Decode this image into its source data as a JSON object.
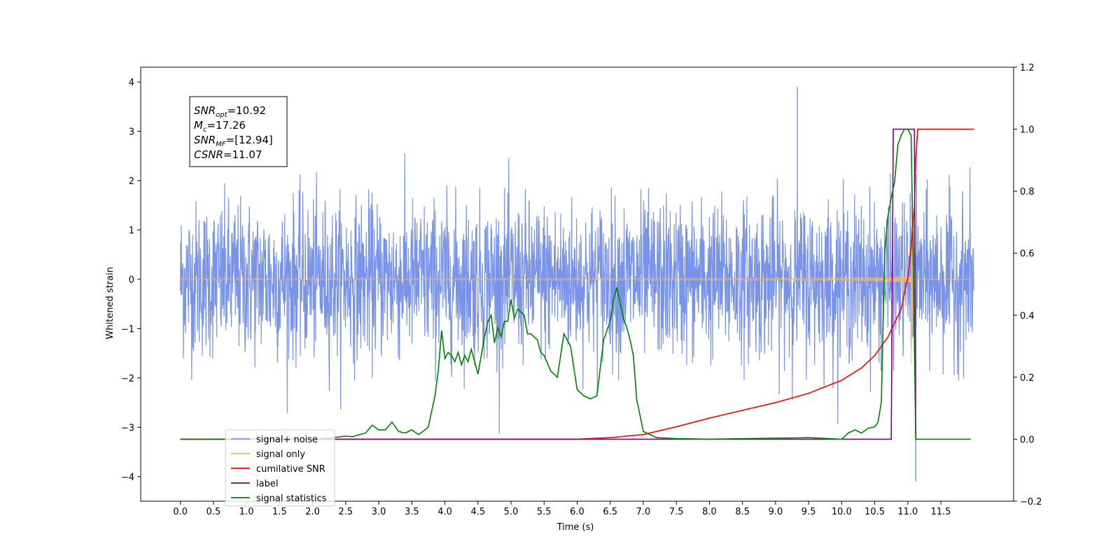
{
  "chart_data": {
    "type": "line",
    "xlabel": "Time (s)",
    "ylabel": "Whitened strain",
    "xlim": [
      -0.6,
      12.6
    ],
    "ylim_left": [
      -4.5,
      4.3
    ],
    "ylim_right": [
      -0.2,
      1.2
    ],
    "x_ticks": [
      0.0,
      0.5,
      1.0,
      1.5,
      2.0,
      2.5,
      3.0,
      3.5,
      4.0,
      4.5,
      5.0,
      5.5,
      6.0,
      6.5,
      7.0,
      7.5,
      8.0,
      8.5,
      9.0,
      9.5,
      10.0,
      10.5,
      11.0,
      11.5
    ],
    "x_tick_labels": [
      "0.0",
      "0.5",
      "1.0",
      "1.5",
      "2.0",
      "2.5",
      "3.0",
      "3.5",
      "4.0",
      "4.5",
      "5.0",
      "5.5",
      "6.0",
      "6.5",
      "7.0",
      "7.5",
      "8.0",
      "8.5",
      "9.0",
      "9.5",
      "10.0",
      "10.5",
      "11.0",
      "11.5"
    ],
    "y_left_ticks": [
      4,
      3,
      2,
      1,
      0,
      -1,
      -2,
      -3,
      -4
    ],
    "y_left_tick_labels": [
      "4",
      "3",
      "2",
      "1",
      "0",
      "−1",
      "−2",
      "−3",
      "−4"
    ],
    "y_right_ticks": [
      1.2,
      1.0,
      0.8,
      0.6,
      0.4,
      0.2,
      0.0,
      -0.2
    ],
    "y_right_tick_labels": [
      "1.2",
      "1.0",
      "0.8",
      "0.6",
      "0.4",
      "0.2",
      "0.0",
      "−0.2"
    ],
    "grid": false,
    "legend_position": "lower-left",
    "annotation": {
      "lines": [
        {
          "main": "SNR",
          "sub": "opt",
          "rest": "=10.92"
        },
        {
          "main": "M",
          "sub": "c",
          "rest": "=17.26"
        },
        {
          "main": "SNR",
          "sub": "MF",
          "rest": "=[12.94]"
        },
        {
          "main": "CSNR",
          "sub": "",
          "rest": "=11.07"
        }
      ]
    },
    "series": [
      {
        "name": "signal+ noise",
        "axis": "left",
        "color": "#7893E8",
        "noise_envelope": {
          "x_start": 0.0,
          "x_end": 12.0,
          "typical_range": [
            -1.5,
            1.5
          ],
          "max": 3.9,
          "min": -4.1
        }
      },
      {
        "name": "signal only",
        "axis": "left",
        "color": "#F5B86E",
        "chirp": {
          "x_start": 0.0,
          "x_end": 11.1,
          "peak_time": 11.05,
          "peak_amplitude": 1.75
        }
      },
      {
        "name": "cumilative SNR",
        "axis": "right",
        "color": "#FF0000",
        "x": [
          0.0,
          6.0,
          6.5,
          7.0,
          7.5,
          8.0,
          8.5,
          9.0,
          9.5,
          10.0,
          10.3,
          10.5,
          10.7,
          10.9,
          11.0,
          11.05,
          11.1,
          11.12,
          11.15,
          12.0
        ],
        "values": [
          0.0,
          0.0,
          0.005,
          0.015,
          0.04,
          0.068,
          0.093,
          0.118,
          0.148,
          0.19,
          0.23,
          0.27,
          0.33,
          0.42,
          0.52,
          0.62,
          0.75,
          0.9,
          1.0,
          1.0
        ]
      },
      {
        "name": "label",
        "axis": "right",
        "color": "#800080",
        "x": [
          0.0,
          10.75,
          10.78,
          11.1,
          11.12,
          11.15
        ],
        "values": [
          0.0,
          0.0,
          1.0,
          1.0,
          0.0,
          0.0
        ]
      },
      {
        "name": "signal statistics",
        "axis": "right",
        "color": "#008000",
        "x": [
          0.0,
          2.0,
          2.3,
          2.5,
          2.6,
          2.8,
          2.9,
          3.0,
          3.1,
          3.2,
          3.3,
          3.4,
          3.5,
          3.6,
          3.7,
          3.75,
          3.85,
          3.9,
          3.95,
          4.0,
          4.05,
          4.1,
          4.15,
          4.2,
          4.25,
          4.3,
          4.35,
          4.4,
          4.5,
          4.6,
          4.65,
          4.7,
          4.75,
          4.8,
          4.85,
          4.9,
          4.95,
          5.0,
          5.05,
          5.1,
          5.2,
          5.25,
          5.3,
          5.4,
          5.45,
          5.5,
          5.6,
          5.7,
          5.8,
          5.9,
          6.0,
          6.1,
          6.2,
          6.3,
          6.4,
          6.45,
          6.5,
          6.55,
          6.6,
          6.7,
          6.75,
          6.8,
          6.85,
          6.9,
          7.0,
          7.2,
          7.5,
          8.0,
          9.5,
          10.0,
          10.1,
          10.2,
          10.3,
          10.4,
          10.5,
          10.55,
          10.6,
          10.65,
          10.7,
          10.75,
          10.8,
          10.85,
          10.9,
          10.95,
          11.0,
          11.05,
          11.08,
          11.12,
          11.15,
          11.95
        ],
        "values": [
          0.0,
          0.0,
          0.005,
          0.01,
          0.008,
          0.02,
          0.045,
          0.03,
          0.03,
          0.055,
          0.025,
          0.02,
          0.03,
          0.015,
          0.03,
          0.04,
          0.14,
          0.22,
          0.35,
          0.26,
          0.28,
          0.27,
          0.25,
          0.28,
          0.24,
          0.27,
          0.25,
          0.29,
          0.21,
          0.33,
          0.38,
          0.4,
          0.31,
          0.36,
          0.33,
          0.38,
          0.38,
          0.45,
          0.39,
          0.42,
          0.4,
          0.34,
          0.34,
          0.32,
          0.28,
          0.27,
          0.22,
          0.2,
          0.34,
          0.3,
          0.16,
          0.14,
          0.13,
          0.14,
          0.32,
          0.35,
          0.38,
          0.45,
          0.49,
          0.39,
          0.36,
          0.32,
          0.27,
          0.13,
          0.025,
          0.005,
          0.002,
          0.0,
          0.005,
          0.0,
          0.02,
          0.03,
          0.02,
          0.035,
          0.04,
          0.055,
          0.12,
          0.6,
          0.72,
          0.78,
          0.83,
          0.95,
          0.98,
          1.0,
          1.0,
          0.98,
          0.6,
          0.0,
          0.0,
          0.0
        ]
      }
    ]
  }
}
